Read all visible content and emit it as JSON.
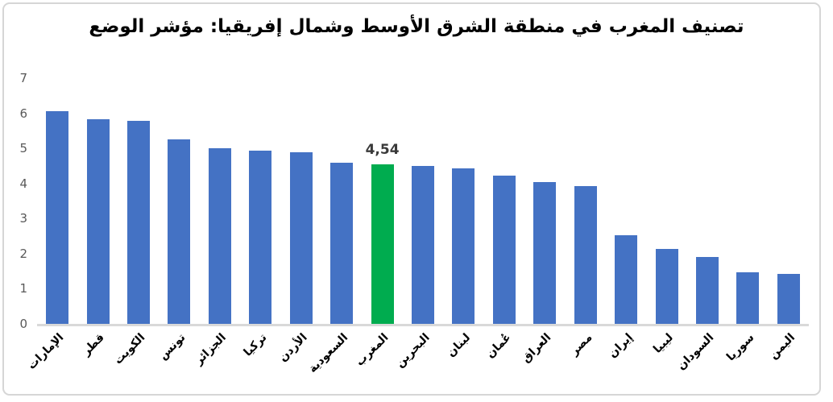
{
  "chart_data": {
    "type": "bar",
    "title": "تصنيف المغرب في منطقة الشرق الأوسط وشمال إفريقيا: مؤشر الوضع",
    "categories": [
      "الإمارات",
      "قطر",
      "الكويت",
      "تونس",
      "الجزائر",
      "تركيا",
      "الأردن",
      "السعودية",
      "المغرب",
      "البحرين",
      "لبنان",
      "عُمان",
      "العراق",
      "مصر",
      "إيران",
      "ليبيا",
      "السودان",
      "سوريا",
      "اليمن"
    ],
    "values": [
      6.05,
      5.83,
      5.78,
      5.25,
      5.0,
      4.94,
      4.88,
      4.59,
      4.54,
      4.51,
      4.43,
      4.22,
      4.04,
      3.92,
      2.53,
      2.14,
      1.9,
      1.47,
      1.43
    ],
    "highlight": {
      "category": "المغرب",
      "index": 8,
      "label": "4,54"
    },
    "y_ticks": [
      0,
      1,
      2,
      3,
      4,
      5,
      6,
      7
    ],
    "ylim": [
      0,
      7
    ],
    "xlabel": "",
    "ylabel": "",
    "grid": false,
    "legend_position": "none",
    "bar_color": "#4472c4",
    "highlight_color": "#00ac4f",
    "axis_line_color": "#d9d9d9",
    "tick_label_color": "#595959"
  }
}
